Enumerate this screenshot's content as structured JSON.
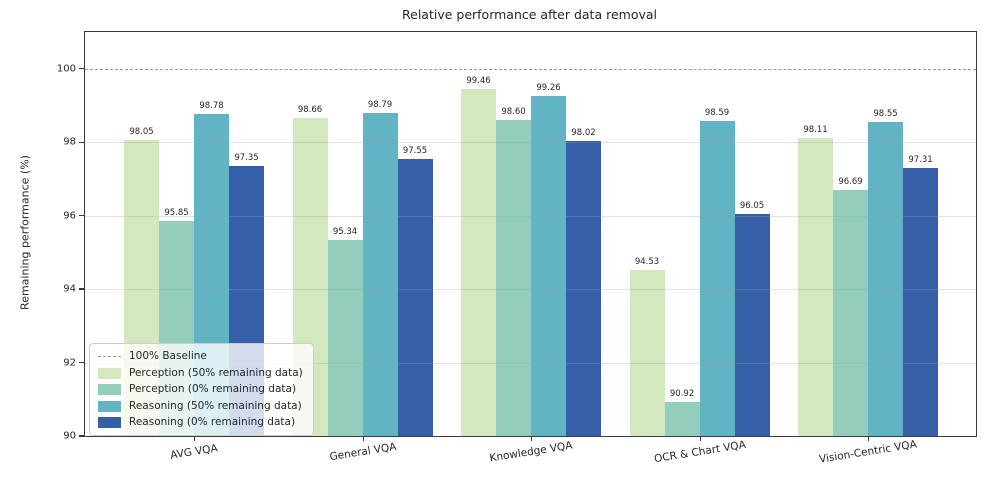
{
  "chart_data": {
    "type": "bar",
    "title": "Relative performance after data removal",
    "xlabel": "",
    "ylabel": "Remaining performance (%)",
    "categories": [
      "AVG VQA",
      "General VQA",
      "Knowledge VQA",
      "OCR & Chart VQA",
      "Vision-Centric VQA"
    ],
    "series": [
      {
        "name": "Perception (50% remaining data)",
        "color": "#d4e8c0",
        "values": [
          98.05,
          98.66,
          99.46,
          94.53,
          98.11
        ]
      },
      {
        "name": "Perception (0% remaining data)",
        "color": "#93cdbc",
        "values": [
          95.85,
          95.34,
          98.6,
          90.92,
          96.69
        ]
      },
      {
        "name": "Reasoning (50% remaining data)",
        "color": "#62b4c4",
        "values": [
          98.78,
          98.79,
          99.26,
          98.59,
          98.55
        ]
      },
      {
        "name": "Reasoning (0% remaining data)",
        "color": "#3560a8",
        "values": [
          97.35,
          97.55,
          98.02,
          96.05,
          97.31
        ]
      }
    ],
    "baseline": {
      "label": "100% Baseline",
      "value": 100,
      "style": "dashed",
      "color": "#9a9a9a"
    },
    "ylim": [
      90,
      101
    ],
    "yticks": [
      90,
      92,
      94,
      96,
      98,
      100
    ],
    "grid": true,
    "value_labels": true,
    "value_label_decimals": 2,
    "legend_position": "lower left"
  }
}
